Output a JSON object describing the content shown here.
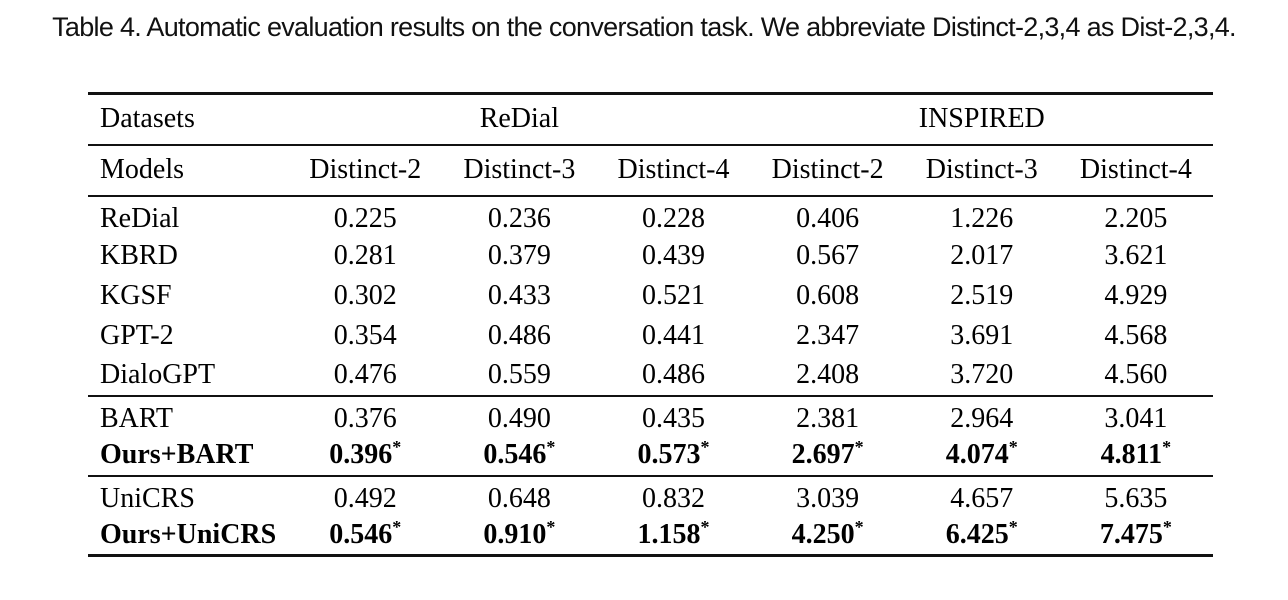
{
  "caption": "Table 4.  Automatic evaluation results on the conversation task. We abbreviate Distinct-2,3,4 as Dist-2,3,4.",
  "table": {
    "corner_label": "Datasets",
    "models_label": "Models",
    "dataset_groups": [
      "ReDial",
      "INSPIRED"
    ],
    "metric_headers": [
      "Distinct-2",
      "Distinct-3",
      "Distinct-4",
      "Distinct-2",
      "Distinct-3",
      "Distinct-4"
    ],
    "significance_marker": "*",
    "groups": [
      {
        "rows": [
          {
            "model": "ReDial",
            "values": [
              "0.225",
              "0.236",
              "0.228",
              "0.406",
              "1.226",
              "2.205"
            ]
          },
          {
            "model": "KBRD",
            "values": [
              "0.281",
              "0.379",
              "0.439",
              "0.567",
              "2.017",
              "3.621"
            ]
          },
          {
            "model": "KGSF",
            "values": [
              "0.302",
              "0.433",
              "0.521",
              "0.608",
              "2.519",
              "4.929"
            ]
          },
          {
            "model": "GPT-2",
            "values": [
              "0.354",
              "0.486",
              "0.441",
              "2.347",
              "3.691",
              "4.568"
            ]
          },
          {
            "model": "DialoGPT",
            "values": [
              "0.476",
              "0.559",
              "0.486",
              "2.408",
              "3.720",
              "4.560"
            ]
          }
        ]
      },
      {
        "rows": [
          {
            "model": "BART",
            "values": [
              "0.376",
              "0.490",
              "0.435",
              "2.381",
              "2.964",
              "3.041"
            ]
          },
          {
            "model": "Ours+BART",
            "values": [
              "0.396",
              "0.546",
              "0.573",
              "2.697",
              "4.074",
              "4.811"
            ],
            "bold": true,
            "starred": true
          }
        ]
      },
      {
        "rows": [
          {
            "model": "UniCRS",
            "values": [
              "0.492",
              "0.648",
              "0.832",
              "3.039",
              "4.657",
              "5.635"
            ]
          },
          {
            "model": "Ours+UniCRS",
            "values": [
              "0.546",
              "0.910",
              "1.158",
              "4.250",
              "6.425",
              "7.475"
            ],
            "bold": true,
            "starred": true
          }
        ]
      }
    ]
  }
}
